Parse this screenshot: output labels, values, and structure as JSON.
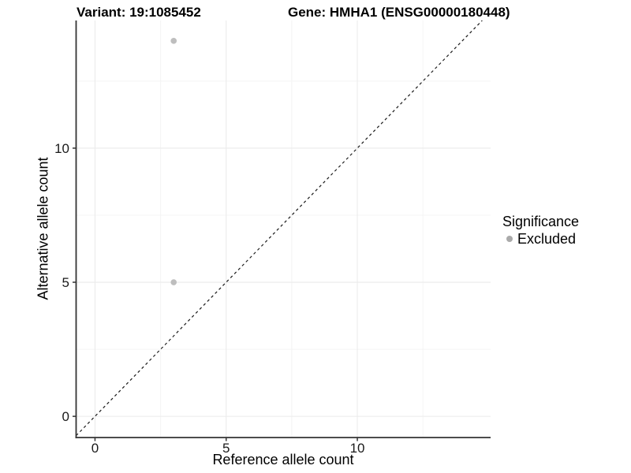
{
  "header": {
    "variant_title": "Variant: 19:1085452",
    "gene_title": "Gene: HMHA1 (ENSG00000180448)"
  },
  "chart_data": {
    "type": "scatter",
    "xlabel": "Reference allele count",
    "ylabel": "Alternative allele count",
    "xlim": [
      -0.72,
      15.08
    ],
    "ylim": [
      -0.79,
      14.76
    ],
    "x_major_ticks": [
      0,
      5,
      10
    ],
    "y_major_ticks": [
      0,
      5,
      10
    ],
    "x_minor_gridlines": [
      2.5,
      7.5,
      12.5
    ],
    "y_minor_gridlines": [
      2.5,
      7.5,
      12.5
    ],
    "grid": true,
    "identity_line": {
      "equation": "y = x",
      "style": "dashed"
    },
    "series": [
      {
        "name": "Excluded",
        "color": "#bebebe",
        "point_radius": 3.8,
        "points": [
          {
            "x": 3,
            "y": 14
          },
          {
            "x": 3,
            "y": 5
          }
        ]
      }
    ],
    "legend": {
      "title": "Significance",
      "position": "right",
      "items": [
        {
          "label": "Excluded",
          "color": "#aaaaaa"
        }
      ]
    }
  },
  "colors": {
    "background": "#ffffff",
    "grid_major": "#ebebeb",
    "grid_minor": "#f4f4f4",
    "axis_line": "#333333",
    "tick_mark": "#333333",
    "tick_label": "#1a1a1a",
    "identity_line": "#1a1a1a",
    "title_text": "#000000"
  }
}
